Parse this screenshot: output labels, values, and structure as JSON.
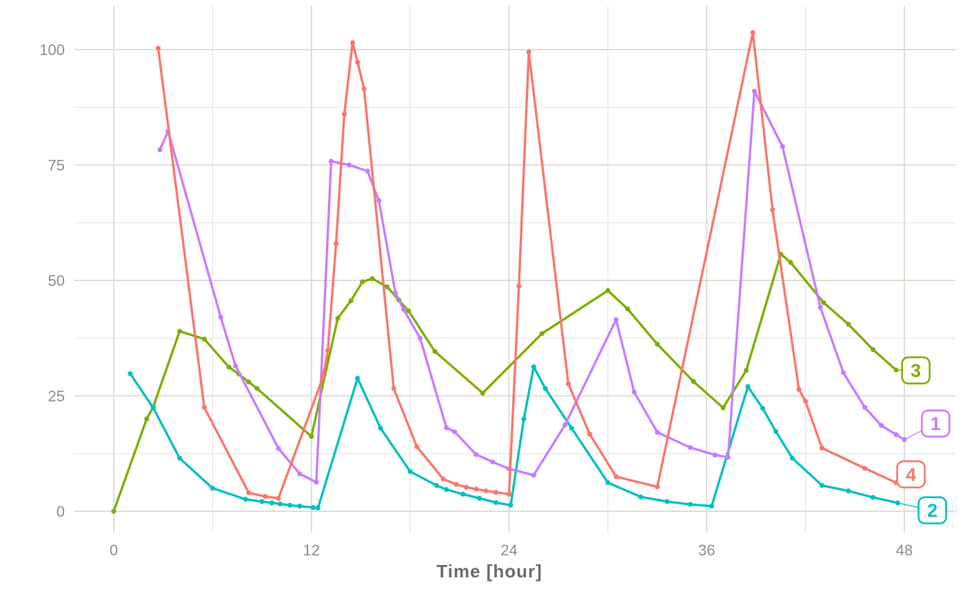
{
  "chart_data": {
    "type": "line",
    "title": "",
    "xlabel": "Time [hour]",
    "ylabel": "",
    "x_ticks": [
      0,
      12,
      24,
      36,
      48
    ],
    "y_ticks": [
      0,
      25,
      50,
      75,
      100
    ],
    "x_minor_step": 6,
    "y_minor_step": 12.5,
    "xlim": [
      0,
      48
    ],
    "ylim": [
      0,
      103.7
    ],
    "grid": true,
    "legend_position": "right-edge-labels",
    "series": [
      {
        "name": "3",
        "color": "#7CAE00",
        "label": {
          "text": "3",
          "x": 48.7,
          "y": 30.5
        },
        "points": [
          [
            0,
            0
          ],
          [
            2,
            20
          ],
          [
            2.4,
            22.6
          ],
          [
            4,
            39
          ],
          [
            5.5,
            37.3
          ],
          [
            7,
            31.2
          ],
          [
            7.6,
            29.7
          ],
          [
            8.2,
            28
          ],
          [
            8.7,
            26.6
          ],
          [
            12,
            16.2
          ],
          [
            13.6,
            41.8
          ],
          [
            14.4,
            45.6
          ],
          [
            15.1,
            49.7
          ],
          [
            15.7,
            50.4
          ],
          [
            16.6,
            48.6
          ],
          [
            17.3,
            45.8
          ],
          [
            17.9,
            43.4
          ],
          [
            19.5,
            34.6
          ],
          [
            22.4,
            25.6
          ],
          [
            26,
            38.5
          ],
          [
            30,
            47.8
          ],
          [
            31.2,
            43.8
          ],
          [
            33,
            36.2
          ],
          [
            35.2,
            28.1
          ],
          [
            37,
            22.4
          ],
          [
            38.4,
            30.5
          ],
          [
            40.5,
            55.7
          ],
          [
            41.1,
            53.9
          ],
          [
            43.1,
            45.2
          ],
          [
            44.6,
            40.5
          ],
          [
            46.1,
            35
          ],
          [
            47.5,
            30.6
          ]
        ]
      },
      {
        "name": "2",
        "color": "#00BFC4",
        "label": {
          "text": "2",
          "x": 49.7,
          "y": 0.2
        },
        "points": [
          [
            1,
            29.8
          ],
          [
            2.4,
            22.4
          ],
          [
            4,
            11.5
          ],
          [
            6,
            5
          ],
          [
            8,
            2.6
          ],
          [
            9,
            2.1
          ],
          [
            9.6,
            1.8
          ],
          [
            10.1,
            1.6
          ],
          [
            10.7,
            1.3
          ],
          [
            11.3,
            1.1
          ],
          [
            12.1,
            0.8
          ],
          [
            12.4,
            0.7
          ],
          [
            14.8,
            28.8
          ],
          [
            16.2,
            18
          ],
          [
            18,
            8.6
          ],
          [
            19.6,
            5.6
          ],
          [
            20.2,
            4.7
          ],
          [
            21.2,
            3.7
          ],
          [
            22.2,
            2.8
          ],
          [
            23.2,
            1.9
          ],
          [
            24.1,
            1.3
          ],
          [
            24.9,
            20
          ],
          [
            25.5,
            31.3
          ],
          [
            26.2,
            26.6
          ],
          [
            27.8,
            18
          ],
          [
            30,
            6.2
          ],
          [
            32,
            3.1
          ],
          [
            33.6,
            2.1
          ],
          [
            35,
            1.5
          ],
          [
            36.3,
            1.1
          ],
          [
            38.5,
            27
          ],
          [
            39.4,
            22.3
          ],
          [
            40.2,
            17.3
          ],
          [
            41.2,
            11.5
          ],
          [
            43,
            5.6
          ],
          [
            44.6,
            4.4
          ],
          [
            46.1,
            3
          ],
          [
            47.6,
            1.8
          ]
        ]
      },
      {
        "name": "1",
        "color": "#C77CFF",
        "label": {
          "text": "1",
          "x": 49.9,
          "y": 19
        },
        "points": [
          [
            2.8,
            78.3
          ],
          [
            3.3,
            82.3
          ],
          [
            6.5,
            42
          ],
          [
            7.4,
            31.5
          ],
          [
            10,
            13.6
          ],
          [
            11.3,
            8.1
          ],
          [
            12.3,
            6.3
          ],
          [
            13.2,
            75.8
          ],
          [
            14.3,
            75
          ],
          [
            15.4,
            73.7
          ],
          [
            16.1,
            67.3
          ],
          [
            17.1,
            47.3
          ],
          [
            17.6,
            43.7
          ],
          [
            18.6,
            37.5
          ],
          [
            20.2,
            18.1
          ],
          [
            20.7,
            17.2
          ],
          [
            22,
            12.3
          ],
          [
            23,
            10.7
          ],
          [
            24,
            9.2
          ],
          [
            25.5,
            7.8
          ],
          [
            27.4,
            18.7
          ],
          [
            30.5,
            41.5
          ],
          [
            31.6,
            25.8
          ],
          [
            33,
            17.1
          ],
          [
            35,
            13.8
          ],
          [
            36.5,
            12.2
          ],
          [
            37.3,
            11.7
          ],
          [
            38.9,
            91
          ],
          [
            40.6,
            79
          ],
          [
            42.9,
            44.2
          ],
          [
            44.3,
            30
          ],
          [
            45.6,
            22.5
          ],
          [
            46.6,
            18.6
          ],
          [
            47.5,
            16.6
          ],
          [
            48,
            15.5
          ]
        ]
      },
      {
        "name": "4",
        "color": "#F8766D",
        "label": {
          "text": "4",
          "x": 48.4,
          "y": 8
        },
        "points": [
          [
            2.7,
            100.3
          ],
          [
            5.5,
            22.5
          ],
          [
            8.2,
            4
          ],
          [
            9.2,
            3.2
          ],
          [
            10,
            2.8
          ],
          [
            12.7,
            29
          ],
          [
            13,
            34.8
          ],
          [
            13.5,
            58
          ],
          [
            14,
            86
          ],
          [
            14.5,
            101.5
          ],
          [
            14.8,
            97.3
          ],
          [
            15.2,
            91.5
          ],
          [
            17,
            26.6
          ],
          [
            18.4,
            14
          ],
          [
            20,
            7
          ],
          [
            20.8,
            5.8
          ],
          [
            21.4,
            5.2
          ],
          [
            22,
            4.8
          ],
          [
            22.6,
            4.4
          ],
          [
            23.2,
            4.1
          ],
          [
            24,
            3.7
          ],
          [
            24.6,
            48.8
          ],
          [
            25.2,
            99.5
          ],
          [
            27.6,
            27.6
          ],
          [
            28.9,
            16.7
          ],
          [
            30.5,
            7.5
          ],
          [
            33,
            5.3
          ],
          [
            38.8,
            103.7
          ],
          [
            40,
            65.3
          ],
          [
            41.6,
            26.4
          ],
          [
            42,
            23.8
          ],
          [
            43,
            13.7
          ],
          [
            45.6,
            9.3
          ],
          [
            47.5,
            6.2
          ]
        ]
      }
    ]
  },
  "theme": {
    "background": "#ffffff",
    "grid_major": "#dbd7cc",
    "grid_minor": "#e6e3da",
    "tick_label_color": "#8c8c8c",
    "title_color": "#6a6a6a",
    "label_box_fill": "#ffffff"
  }
}
